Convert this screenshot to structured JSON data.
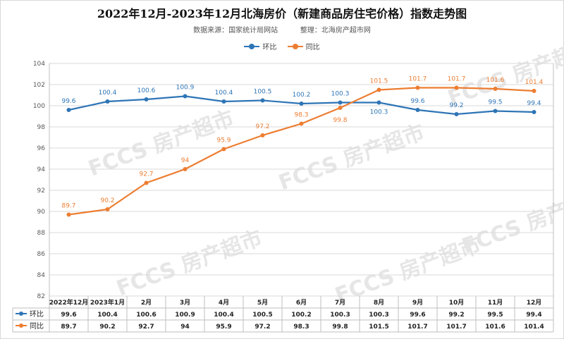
{
  "chart_data": {
    "type": "line",
    "title": "2022年12月-2023年12月北海房价（新建商品房住宅价格）指数走势图",
    "source_label": "数据来源：国家统计局网站",
    "compiler_label": "整理：北海房产超市网",
    "categories": [
      "2022年12月",
      "2023年1月",
      "2月",
      "3月",
      "4月",
      "5月",
      "6月",
      "7月",
      "8月",
      "9月",
      "10月",
      "11月",
      "12月"
    ],
    "series": [
      {
        "name": "环比",
        "color": "#2e75b6",
        "values": [
          99.6,
          100.4,
          100.6,
          100.9,
          100.4,
          100.5,
          100.2,
          100.3,
          100.3,
          99.6,
          99.2,
          99.5,
          99.4
        ]
      },
      {
        "name": "同比",
        "color": "#ed7d31",
        "values": [
          89.7,
          90.2,
          92.7,
          94,
          95.9,
          97.2,
          98.3,
          99.8,
          101.5,
          101.7,
          101.7,
          101.6,
          101.4
        ]
      }
    ],
    "ylim": [
      82,
      104
    ],
    "yticks": [
      82,
      84,
      86,
      88,
      90,
      92,
      94,
      96,
      98,
      100,
      102,
      104
    ],
    "grid": true,
    "legend_position": "top-center",
    "data_table": true
  },
  "watermark": "FCCS 房产超市"
}
